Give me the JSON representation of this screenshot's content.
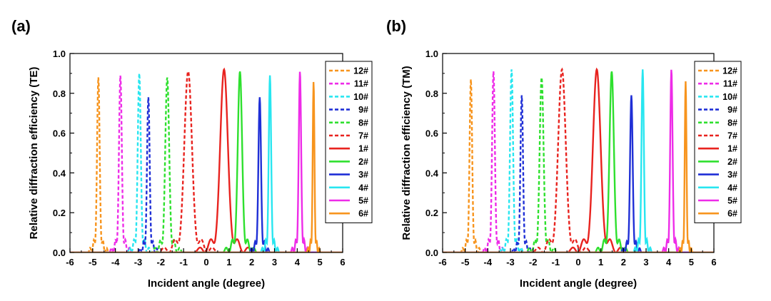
{
  "chart_data": [
    {
      "type": "line",
      "panel_label": "(a)",
      "xlabel": "Incident angle (degree)",
      "ylabel": "Relative diffraction efficiency (TE)",
      "xlim": [
        -6,
        6
      ],
      "ylim": [
        0,
        1.0
      ],
      "x_ticks": [
        "-6",
        "-5",
        "-4",
        "-3",
        "-2",
        "-1",
        "0",
        "1",
        "2",
        "3",
        "4",
        "5",
        "6"
      ],
      "y_ticks": [
        "0.0",
        "0.2",
        "0.4",
        "0.6",
        "0.8",
        "1.0"
      ],
      "legend_position": "right",
      "series": [
        {
          "name": "12#",
          "color": "#f7941d",
          "dash": true,
          "peak_x": -4.75,
          "peak_y": 0.88,
          "width": 0.12
        },
        {
          "name": "11#",
          "color": "#ee2ce8",
          "dash": true,
          "peak_x": -3.78,
          "peak_y": 0.89,
          "width": 0.13
        },
        {
          "name": "10#",
          "color": "#28e6f0",
          "dash": true,
          "peak_x": -2.95,
          "peak_y": 0.9,
          "width": 0.14
        },
        {
          "name": "9#",
          "color": "#1f2fd6",
          "dash": true,
          "peak_x": -2.55,
          "peak_y": 0.78,
          "width": 0.12
        },
        {
          "name": "8#",
          "color": "#2ee02e",
          "dash": true,
          "peak_x": -1.72,
          "peak_y": 0.88,
          "width": 0.18
        },
        {
          "name": "7#",
          "color": "#e8231f",
          "dash": true,
          "peak_x": -0.8,
          "peak_y": 0.91,
          "width": 0.35
        },
        {
          "name": "1#",
          "color": "#e8231f",
          "dash": false,
          "peak_x": 0.78,
          "peak_y": 0.92,
          "width": 0.35
        },
        {
          "name": "2#",
          "color": "#2ee02e",
          "dash": false,
          "peak_x": 1.48,
          "peak_y": 0.91,
          "width": 0.2
        },
        {
          "name": "3#",
          "color": "#1f2fd6",
          "dash": false,
          "peak_x": 2.35,
          "peak_y": 0.78,
          "width": 0.12
        },
        {
          "name": "4#",
          "color": "#28e6f0",
          "dash": false,
          "peak_x": 2.8,
          "peak_y": 0.89,
          "width": 0.11
        },
        {
          "name": "5#",
          "color": "#ee2ce8",
          "dash": false,
          "peak_x": 4.12,
          "peak_y": 0.91,
          "width": 0.11
        },
        {
          "name": "6#",
          "color": "#f7941d",
          "dash": false,
          "peak_x": 4.72,
          "peak_y": 0.86,
          "width": 0.08
        }
      ]
    },
    {
      "type": "line",
      "panel_label": "(b)",
      "xlabel": "Incident angle (degree)",
      "ylabel": "Relative diffraction efficiency (TM)",
      "xlim": [
        -6,
        6
      ],
      "ylim": [
        0,
        1.0
      ],
      "x_ticks": [
        "-6",
        "-5",
        "-4",
        "-3",
        "-2",
        "-1",
        "0",
        "1",
        "2",
        "3",
        "4",
        "5",
        "6"
      ],
      "y_ticks": [
        "0.0",
        "0.2",
        "0.4",
        "0.6",
        "0.8",
        "1.0"
      ],
      "legend_position": "right",
      "series": [
        {
          "name": "12#",
          "color": "#f7941d",
          "dash": true,
          "peak_x": -4.75,
          "peak_y": 0.87,
          "width": 0.12
        },
        {
          "name": "11#",
          "color": "#ee2ce8",
          "dash": true,
          "peak_x": -3.75,
          "peak_y": 0.91,
          "width": 0.13
        },
        {
          "name": "10#",
          "color": "#28e6f0",
          "dash": true,
          "peak_x": -2.95,
          "peak_y": 0.92,
          "width": 0.14
        },
        {
          "name": "9#",
          "color": "#1f2fd6",
          "dash": true,
          "peak_x": -2.5,
          "peak_y": 0.79,
          "width": 0.12
        },
        {
          "name": "8#",
          "color": "#2ee02e",
          "dash": true,
          "peak_x": -1.62,
          "peak_y": 0.88,
          "width": 0.18
        },
        {
          "name": "7#",
          "color": "#e8231f",
          "dash": true,
          "peak_x": -0.72,
          "peak_y": 0.92,
          "width": 0.35
        },
        {
          "name": "1#",
          "color": "#e8231f",
          "dash": false,
          "peak_x": 0.82,
          "peak_y": 0.92,
          "width": 0.35
        },
        {
          "name": "2#",
          "color": "#2ee02e",
          "dash": false,
          "peak_x": 1.48,
          "peak_y": 0.91,
          "width": 0.2
        },
        {
          "name": "3#",
          "color": "#1f2fd6",
          "dash": false,
          "peak_x": 2.35,
          "peak_y": 0.79,
          "width": 0.12
        },
        {
          "name": "4#",
          "color": "#28e6f0",
          "dash": false,
          "peak_x": 2.85,
          "peak_y": 0.92,
          "width": 0.11
        },
        {
          "name": "5#",
          "color": "#ee2ce8",
          "dash": false,
          "peak_x": 4.12,
          "peak_y": 0.92,
          "width": 0.11
        },
        {
          "name": "6#",
          "color": "#f7941d",
          "dash": false,
          "peak_x": 4.75,
          "peak_y": 0.86,
          "width": 0.08
        }
      ]
    }
  ]
}
